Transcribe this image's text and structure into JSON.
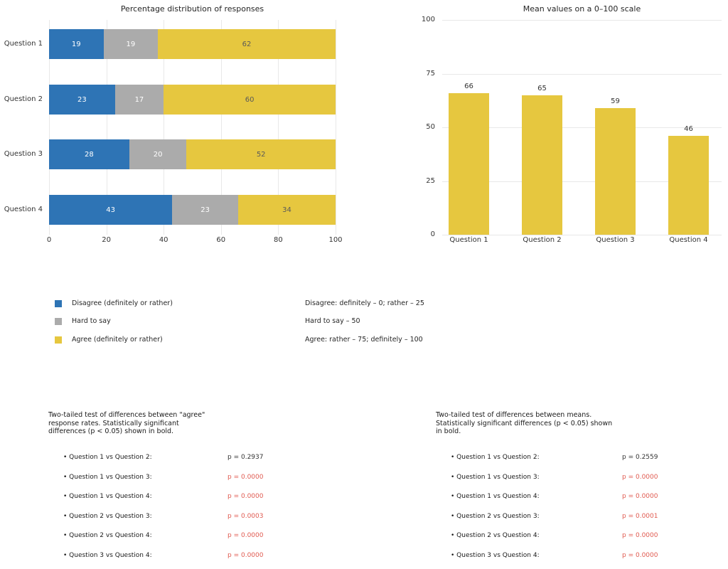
{
  "colors": {
    "disagree": "#2e74b5",
    "hard_to_say": "#ababab",
    "agree": "#e6c73f",
    "grid": "#e8e8e8",
    "p_significant": "#e05a50",
    "p_normal": "#333333"
  },
  "chart_data": [
    {
      "type": "bar",
      "orientation": "horizontal",
      "stacked": true,
      "title": "Percentage distribution of responses",
      "categories": [
        "Question 1",
        "Question 2",
        "Question 3",
        "Question 4"
      ],
      "series": [
        {
          "name": "Disagree (definitely or rather)",
          "color_key": "disagree",
          "value_label_color": "#ffffff",
          "values": [
            19,
            23,
            28,
            43
          ]
        },
        {
          "name": "Hard to say",
          "color_key": "hard_to_say",
          "value_label_color": "#ffffff",
          "values": [
            19,
            17,
            20,
            23
          ]
        },
        {
          "name": "Agree (definitely or rather)",
          "color_key": "agree",
          "value_label_color": "#595959",
          "values": [
            62,
            60,
            52,
            34
          ]
        }
      ],
      "xlim": [
        0,
        100
      ],
      "x_ticks": [
        0,
        20,
        40,
        60,
        80,
        100
      ],
      "grid": true,
      "legend_position": "below"
    },
    {
      "type": "bar",
      "orientation": "vertical",
      "title": "Mean values on a 0–100 scale",
      "categories": [
        "Question 1",
        "Question 2",
        "Question 3",
        "Question 4"
      ],
      "values": [
        66,
        65,
        59,
        46
      ],
      "color_key": "agree",
      "ylim": [
        0,
        100
      ],
      "y_ticks": [
        0,
        25,
        50,
        75,
        100
      ],
      "grid": true
    }
  ],
  "legend": {
    "items": [
      {
        "label": "Disagree (definitely or rather)",
        "color_key": "disagree"
      },
      {
        "label": "Hard to say",
        "color_key": "hard_to_say"
      },
      {
        "label": "Agree (definitely or rather)",
        "color_key": "agree"
      }
    ],
    "scale_notes": [
      "Disagree: definitely – 0; rather – 25",
      "Hard to say – 50",
      "Agree: rather – 75; definitely – 100"
    ]
  },
  "stats": [
    {
      "header": "Two-tailed test of differences between \"agree\" response rates. Statistically significant differences (p < 0.05) shown in bold.",
      "comparisons": [
        {
          "label": "Question 1 vs Question 2:",
          "p": "p = 0.2937",
          "significant": false
        },
        {
          "label": "Question 1 vs Question 3:",
          "p": "p = 0.0000",
          "significant": true
        },
        {
          "label": "Question 1 vs Question 4:",
          "p": "p = 0.0000",
          "significant": true
        },
        {
          "label": "Question 2 vs Question 3:",
          "p": "p = 0.0003",
          "significant": true
        },
        {
          "label": "Question 2 vs Question 4:",
          "p": "p = 0.0000",
          "significant": true
        },
        {
          "label": "Question 3 vs Question 4:",
          "p": "p = 0.0000",
          "significant": true
        }
      ]
    },
    {
      "header": "Two-tailed test of differences between means. Statistically significant differences (p < 0.05) shown in bold.",
      "comparisons": [
        {
          "label": "Question 1 vs Question 2:",
          "p": "p = 0.2559",
          "significant": false
        },
        {
          "label": "Question 1 vs Question 3:",
          "p": "p = 0.0000",
          "significant": true
        },
        {
          "label": "Question 1 vs Question 4:",
          "p": "p = 0.0000",
          "significant": true
        },
        {
          "label": "Question 2 vs Question 3:",
          "p": "p = 0.0001",
          "significant": true
        },
        {
          "label": "Question 2 vs Question 4:",
          "p": "p = 0.0000",
          "significant": true
        },
        {
          "label": "Question 3 vs Question 4:",
          "p": "p = 0.0000",
          "significant": true
        }
      ]
    }
  ]
}
